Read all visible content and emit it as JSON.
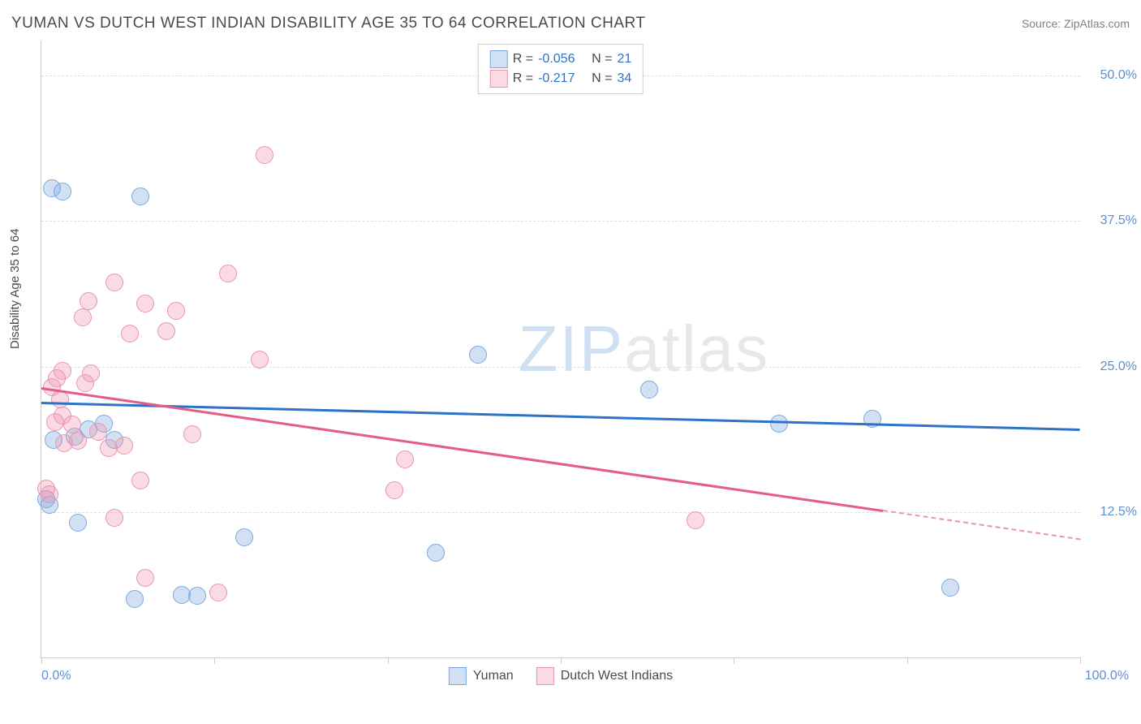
{
  "title": "YUMAN VS DUTCH WEST INDIAN DISABILITY AGE 35 TO 64 CORRELATION CHART",
  "source": "Source: ZipAtlas.com",
  "ylabel": "Disability Age 35 to 64",
  "watermark": {
    "part1": "ZIP",
    "part2": "atlas"
  },
  "chart": {
    "type": "scatter",
    "background_color": "#ffffff",
    "grid_color": "#e0e0e0",
    "axis_color": "#cccccc",
    "xlim": [
      0,
      100
    ],
    "ylim": [
      0,
      53
    ],
    "xtick_positions": [
      0,
      16.67,
      33.33,
      50,
      66.67,
      83.33,
      100
    ],
    "xtick_labels": {
      "left": "0.0%",
      "right": "100.0%"
    },
    "ytick_positions": [
      12.5,
      25,
      37.5,
      50
    ],
    "ytick_labels": [
      "12.5%",
      "25.0%",
      "37.5%",
      "50.0%"
    ],
    "label_color": "#5b8fd4",
    "label_fontsize": 16,
    "title_fontsize": 19,
    "title_color": "#4a4a4a",
    "marker_radius": 10,
    "marker_stroke": 1.5,
    "series": [
      {
        "name": "Yuman",
        "fill": "rgba(122,168,222,0.35)",
        "stroke": "#7aa8de",
        "trend_color": "#2d72c9",
        "R": "-0.056",
        "N": "21",
        "trend": {
          "x1": 0,
          "y1": 22.0,
          "x2": 100,
          "y2": 19.7,
          "dash_from_x": 100
        },
        "points": [
          {
            "x": 1.0,
            "y": 40.3
          },
          {
            "x": 2.0,
            "y": 40.0
          },
          {
            "x": 9.5,
            "y": 39.6
          },
          {
            "x": 42.0,
            "y": 26.0
          },
          {
            "x": 58.5,
            "y": 23.0
          },
          {
            "x": 80.0,
            "y": 20.5
          },
          {
            "x": 71.0,
            "y": 20.1
          },
          {
            "x": 6.0,
            "y": 20.1
          },
          {
            "x": 4.5,
            "y": 19.6
          },
          {
            "x": 1.2,
            "y": 18.7
          },
          {
            "x": 7.0,
            "y": 18.7
          },
          {
            "x": 0.5,
            "y": 13.6
          },
          {
            "x": 0.8,
            "y": 13.1
          },
          {
            "x": 3.5,
            "y": 11.6
          },
          {
            "x": 19.5,
            "y": 10.3
          },
          {
            "x": 38.0,
            "y": 9.0
          },
          {
            "x": 3.2,
            "y": 19.0
          },
          {
            "x": 13.5,
            "y": 5.4
          },
          {
            "x": 15.0,
            "y": 5.3
          },
          {
            "x": 87.5,
            "y": 6.0
          },
          {
            "x": 9.0,
            "y": 5.0
          }
        ]
      },
      {
        "name": "Dutch West Indians",
        "fill": "rgba(240,150,175,0.35)",
        "stroke": "#e895af",
        "trend_color": "#e35d87",
        "R": "-0.217",
        "N": "34",
        "trend": {
          "x1": 0,
          "y1": 23.2,
          "x2": 100,
          "y2": 10.2,
          "dash_from_x": 81
        },
        "points": [
          {
            "x": 21.5,
            "y": 43.2
          },
          {
            "x": 7.0,
            "y": 32.2
          },
          {
            "x": 18.0,
            "y": 33.0
          },
          {
            "x": 4.5,
            "y": 30.6
          },
          {
            "x": 10.0,
            "y": 30.4
          },
          {
            "x": 13.0,
            "y": 29.8
          },
          {
            "x": 4.0,
            "y": 29.2
          },
          {
            "x": 8.5,
            "y": 27.8
          },
          {
            "x": 12.0,
            "y": 28.0
          },
          {
            "x": 21.0,
            "y": 25.6
          },
          {
            "x": 2.0,
            "y": 24.6
          },
          {
            "x": 4.8,
            "y": 24.4
          },
          {
            "x": 1.5,
            "y": 24.0
          },
          {
            "x": 4.2,
            "y": 23.6
          },
          {
            "x": 1.0,
            "y": 23.2
          },
          {
            "x": 1.8,
            "y": 22.2
          },
          {
            "x": 2.0,
            "y": 20.8
          },
          {
            "x": 1.3,
            "y": 20.2
          },
          {
            "x": 3.0,
            "y": 20.0
          },
          {
            "x": 14.5,
            "y": 19.2
          },
          {
            "x": 5.5,
            "y": 19.4
          },
          {
            "x": 3.5,
            "y": 18.6
          },
          {
            "x": 2.2,
            "y": 18.4
          },
          {
            "x": 8.0,
            "y": 18.2
          },
          {
            "x": 6.5,
            "y": 18.0
          },
          {
            "x": 35.0,
            "y": 17.0
          },
          {
            "x": 9.5,
            "y": 15.2
          },
          {
            "x": 34.0,
            "y": 14.4
          },
          {
            "x": 0.5,
            "y": 14.5
          },
          {
            "x": 63.0,
            "y": 11.8
          },
          {
            "x": 7.0,
            "y": 12.0
          },
          {
            "x": 10.0,
            "y": 6.8
          },
          {
            "x": 17.0,
            "y": 5.6
          },
          {
            "x": 0.8,
            "y": 14.0
          }
        ]
      }
    ]
  },
  "legend_top": {
    "r_label": "R =",
    "n_label": "N =",
    "value_color": "#2d72c9",
    "text_color": "#4a4a4a"
  },
  "legend_bottom": {
    "s1_label": "Yuman",
    "s2_label": "Dutch West Indians"
  }
}
